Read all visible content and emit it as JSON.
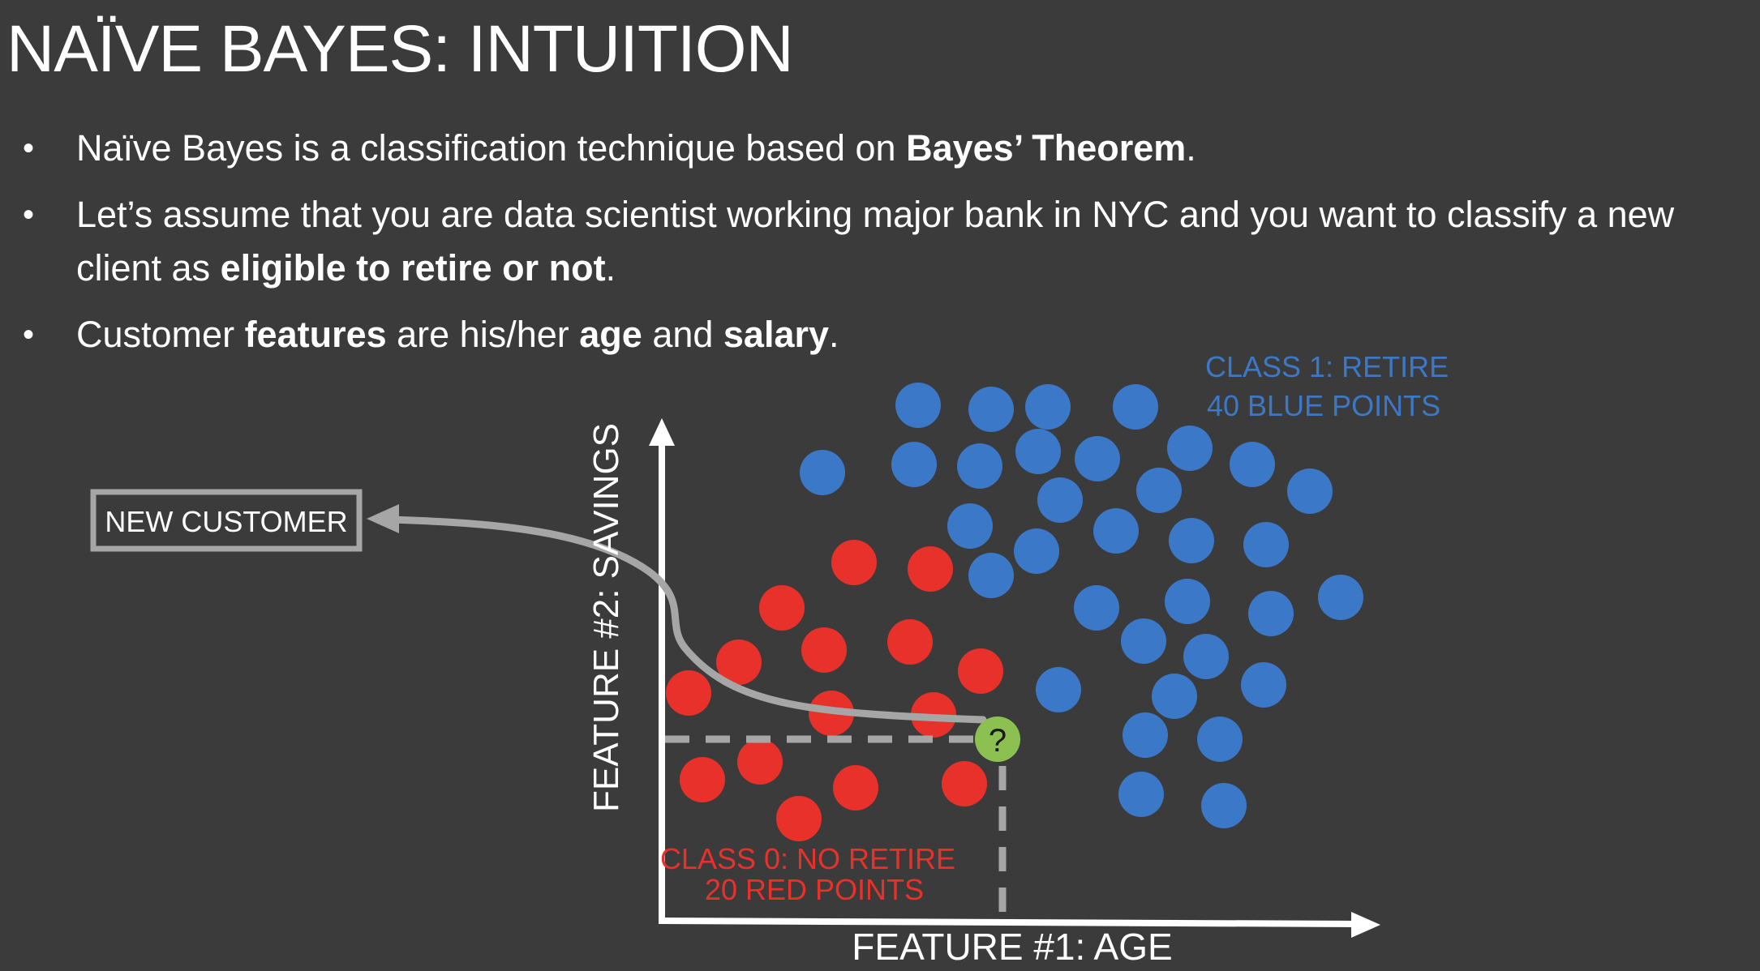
{
  "title": "NAÏVE BAYES: INTUITION",
  "bullets": [
    {
      "parts": [
        {
          "text": "Naïve Bayes is a classification technique based on "
        },
        {
          "text": "Bayes’ Theorem",
          "bold": true
        },
        {
          "text": "."
        }
      ]
    },
    {
      "parts": [
        {
          "text": "Let’s assume that you are data scientist working major bank in NYC and you want to classify a new client as "
        },
        {
          "text": "eligible to retire or not",
          "bold": true
        },
        {
          "text": "."
        }
      ]
    },
    {
      "parts": [
        {
          "text": "Customer "
        },
        {
          "text": "features",
          "bold": true
        },
        {
          "text": " are his/her "
        },
        {
          "text": "age",
          "bold": true
        },
        {
          "text": " and "
        },
        {
          "text": "salary",
          "bold": true
        },
        {
          "text": "."
        }
      ]
    }
  ],
  "diagram": {
    "x_axis_label": "FEATURE #1: AGE",
    "y_axis_label": "FEATURE #2: SAVINGS",
    "new_customer_label": "NEW CUSTOMER",
    "new_point_label": "?",
    "class0": {
      "line1": "CLASS 0: NO RETIRE",
      "line2": "20 RED POINTS",
      "color": "#e8312a"
    },
    "class1": {
      "line1": "CLASS 1: RETIRE",
      "line2": "40 BLUE POINTS",
      "color": "#3b78c8"
    },
    "new_point_color": "#8cc152",
    "axis_color": "#ffffff",
    "line_color": "#a6a6a6"
  }
}
